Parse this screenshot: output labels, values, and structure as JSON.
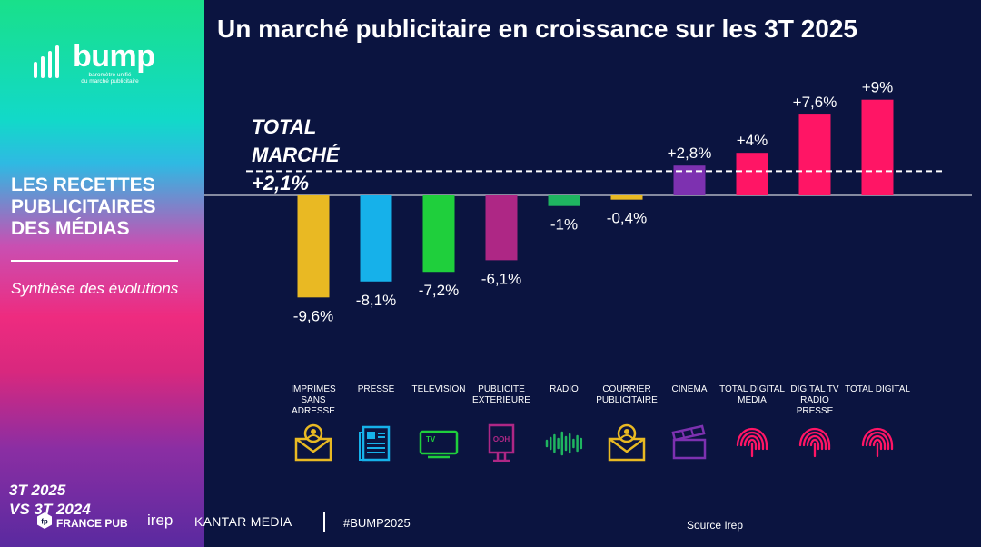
{
  "sidebar": {
    "logo_word": "bump",
    "logo_tagline_1": "baromètre unifié",
    "logo_tagline_2": "du marché publicitaire",
    "section_title": "LES RECETTES PUBLICITAIRES DES MÉDIAS",
    "section_subtitle": "Synthèse des évolutions",
    "period_line1": "3T 2025",
    "period_line2": "VS 3T 2024"
  },
  "header": {
    "title": "Un marché publicitaire en croissance sur les 3T 2025"
  },
  "chart_data": {
    "type": "bar",
    "title": "Un marché publicitaire en croissance sur les 3T 2025",
    "unit": "%",
    "categories": [
      "IMPRIMES SANS ADRESSE",
      "PRESSE",
      "TELEVISION",
      "PUBLICITE EXTERIEURE",
      "RADIO",
      "COURRIER PUBLICITAIRE",
      "CINEMA",
      "TOTAL DIGITAL MEDIA",
      "DIGITAL TV RADIO PRESSE",
      "TOTAL DIGITAL"
    ],
    "values": [
      -9.6,
      -8.1,
      -7.2,
      -6.1,
      -1.0,
      -0.4,
      2.8,
      4.0,
      7.6,
      9.0
    ],
    "value_labels": [
      "-9,6%",
      "-8,1%",
      "-7,2%",
      "-6,1%",
      "-1%",
      "-0,4%",
      "+2,8%",
      "+4%",
      "+7,6%",
      "+9%"
    ],
    "colors": [
      "#e9b923",
      "#16b1ea",
      "#1fcf3c",
      "#ae2785",
      "#1fb560",
      "#e9b923",
      "#7d31b0",
      "#ff1565",
      "#ff1565",
      "#ff1565"
    ],
    "icons": [
      "envelope-person-icon",
      "newspaper-icon",
      "tv-icon",
      "billboard-ooh-icon",
      "soundwave-icon",
      "envelope-person-icon",
      "clapperboard-icon",
      "fingerprint-icon",
      "fingerprint-icon",
      "fingerprint-icon"
    ],
    "reference_line": {
      "value": 2.1,
      "label_line1": "TOTAL",
      "label_line2": "MARCHÉ",
      "label_line3": "+2,1%",
      "style": "dashed",
      "color": "#ffffff"
    },
    "baseline": 0,
    "ylim": [
      -11,
      10
    ],
    "grid": false,
    "legend": "none"
  },
  "footer": {
    "partners": [
      "FRANCE PUB",
      "irep",
      "KANTAR MEDIA"
    ],
    "hashtag": "#BUMP2025",
    "source": "Source Irep"
  }
}
